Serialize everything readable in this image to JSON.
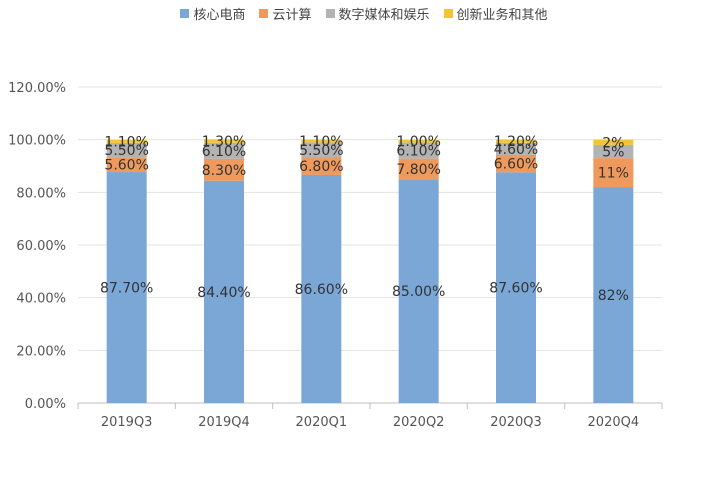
{
  "chart_data": {
    "type": "bar",
    "stacked": true,
    "categories": [
      "2019Q3",
      "2019Q4",
      "2020Q1",
      "2020Q2",
      "2020Q3",
      "2020Q4"
    ],
    "series": [
      {
        "name": "核心电商",
        "color": "#7ba7d7",
        "values": [
          87.7,
          84.4,
          86.6,
          85.0,
          87.6,
          82
        ],
        "labels": [
          "87.70%",
          "84.40%",
          "86.60%",
          "85.00%",
          "87.60%",
          "82%"
        ]
      },
      {
        "name": "云计算",
        "color": "#ef9a5c",
        "values": [
          5.6,
          8.3,
          6.8,
          7.8,
          6.6,
          11
        ],
        "labels": [
          "5.60%",
          "8.30%",
          "6.80%",
          "7.80%",
          "6.60%",
          "11%"
        ]
      },
      {
        "name": "数字媒体和娱乐",
        "color": "#b3b3b3",
        "values": [
          5.5,
          6.1,
          5.5,
          6.1,
          4.6,
          5
        ],
        "labels": [
          "5.50%",
          "6.10%",
          "5.50%",
          "6.10%",
          "4.60%",
          "5%"
        ]
      },
      {
        "name": "创新业务和其他",
        "color": "#f4c531",
        "values": [
          1.1,
          1.3,
          1.1,
          1.0,
          1.2,
          2
        ],
        "labels": [
          "1.10%",
          "1.30%",
          "1.10%",
          "1.00%",
          "1.20%",
          "2%"
        ]
      }
    ],
    "y_ticks": [
      "0.00%",
      "20.00%",
      "40.00%",
      "60.00%",
      "80.00%",
      "100.00%",
      "120.00%"
    ],
    "ylim": [
      0,
      120
    ],
    "grid": true,
    "legend_position": "top-center"
  }
}
